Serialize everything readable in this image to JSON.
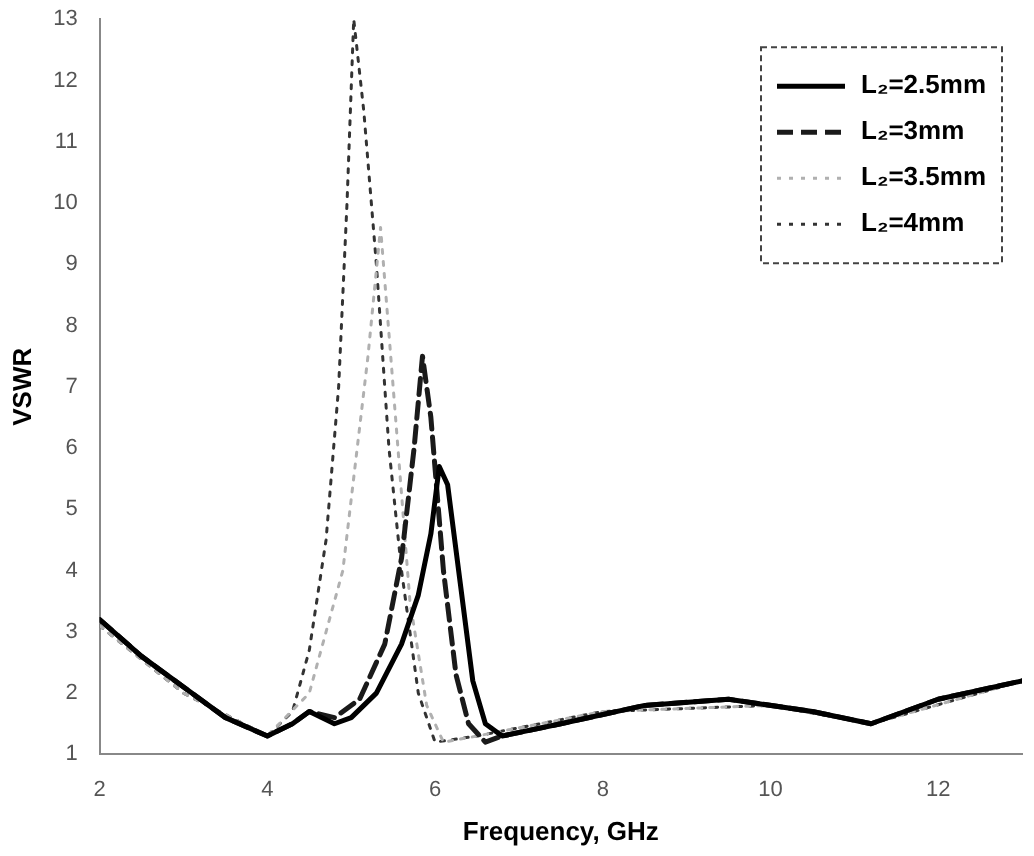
{
  "chart_data": {
    "type": "line",
    "xlabel": "Frequency, GHz",
    "ylabel": "VSWR",
    "xlim": [
      2,
      13
    ],
    "xticks": [
      2,
      4,
      6,
      8,
      10,
      12
    ],
    "ylim": [
      1,
      13
    ],
    "yticks": [
      1,
      2,
      3,
      4,
      5,
      6,
      7,
      8,
      9,
      10,
      11,
      12,
      13
    ],
    "grid": false,
    "legend": "top right",
    "marker": "none",
    "series": [
      {
        "name": "L₂=2.5mm",
        "color": "#000000",
        "line_style": "solid",
        "x": [
          2,
          2.5,
          3,
          3.5,
          4,
          4.3,
          4.5,
          4.8,
          5.0,
          5.3,
          5.6,
          5.8,
          5.95,
          6.05,
          6.15,
          6.3,
          6.45,
          6.6,
          6.8,
          7.5,
          8.5,
          9.5,
          10.5,
          11.2,
          12,
          13
        ],
        "values": [
          3.2,
          2.6,
          2.1,
          1.6,
          1.3,
          1.5,
          1.7,
          1.5,
          1.6,
          2.0,
          2.8,
          3.6,
          4.6,
          5.7,
          5.4,
          3.8,
          2.2,
          1.5,
          1.3,
          1.5,
          1.8,
          1.9,
          1.7,
          1.5,
          1.9,
          2.2
        ]
      },
      {
        "name": "L₂=3mm",
        "color": "#1a1a1a",
        "line_style": "dashed",
        "x": [
          2,
          2.5,
          3,
          3.5,
          4,
          4.3,
          4.5,
          4.8,
          5.1,
          5.4,
          5.6,
          5.75,
          5.85,
          5.95,
          6.1,
          6.25,
          6.4,
          6.6,
          6.8,
          7.5,
          8.5,
          9.5,
          10.5,
          11.2,
          12,
          13
        ],
        "values": [
          3.2,
          2.6,
          2.1,
          1.6,
          1.3,
          1.5,
          1.7,
          1.6,
          1.9,
          2.8,
          4.2,
          6.0,
          7.5,
          6.5,
          4.0,
          2.3,
          1.5,
          1.2,
          1.3,
          1.5,
          1.8,
          1.9,
          1.7,
          1.5,
          1.9,
          2.2
        ]
      },
      {
        "name": "L₂=3.5mm",
        "color": "#b0b0b0",
        "line_style": "dotted",
        "x": [
          2,
          3,
          4,
          4.5,
          4.9,
          5.2,
          5.35,
          5.5,
          5.7,
          5.9,
          6.1,
          6.5,
          8,
          10,
          11.2,
          13
        ],
        "values": [
          3.1,
          2.0,
          1.3,
          2.0,
          4.0,
          7.5,
          9.6,
          7.0,
          3.5,
          1.8,
          1.2,
          1.3,
          1.7,
          1.8,
          1.5,
          2.2
        ]
      },
      {
        "name": "L₂=4mm",
        "color": "#333333",
        "line_style": "dotted",
        "x": [
          2,
          3,
          4,
          4.3,
          4.5,
          4.7,
          4.85,
          4.95,
          5.03,
          5.15,
          5.3,
          5.45,
          5.6,
          5.8,
          6.0,
          6.5,
          8,
          10,
          11.2,
          13
        ],
        "values": [
          3.1,
          2.0,
          1.3,
          1.7,
          2.7,
          4.5,
          7,
          10,
          13,
          11.5,
          9,
          6,
          4,
          2,
          1.2,
          1.3,
          1.7,
          1.8,
          1.5,
          2.2
        ]
      }
    ]
  }
}
